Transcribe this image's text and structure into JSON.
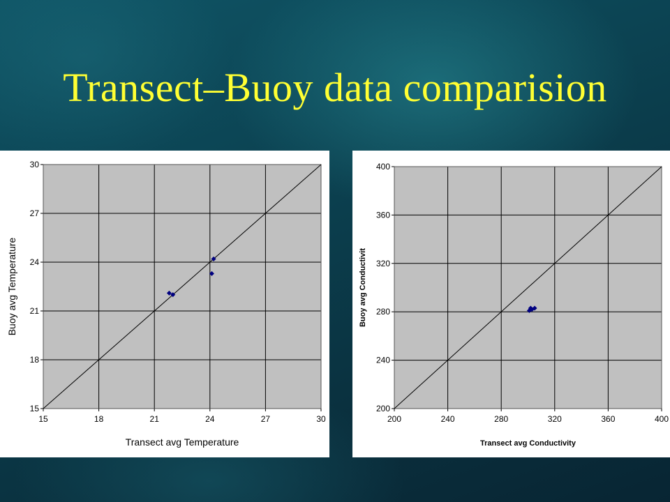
{
  "slide": {
    "title": "Transect–Buoy data comparision"
  },
  "chart_data": [
    {
      "type": "scatter",
      "xlabel": "Transect avg Temperature",
      "ylabel": "Buoy avg Temperature",
      "xlim": [
        15,
        30
      ],
      "ylim": [
        15,
        30
      ],
      "x_ticks": [
        15,
        18,
        21,
        24,
        27,
        30
      ],
      "y_ticks": [
        15,
        18,
        21,
        24,
        27,
        30
      ],
      "grid": true,
      "background": "#c0c0c0",
      "point_color": "#000080",
      "reference_line": "y = x",
      "points": [
        {
          "x": 21.8,
          "y": 22.1
        },
        {
          "x": 22.0,
          "y": 22.0
        },
        {
          "x": 24.2,
          "y": 24.2
        },
        {
          "x": 24.1,
          "y": 23.3
        }
      ]
    },
    {
      "type": "scatter",
      "xlabel": "Transect avg Conductivity",
      "ylabel": "Buoy avg Conductivit",
      "xlim": [
        200,
        400
      ],
      "ylim": [
        200,
        400
      ],
      "x_ticks": [
        200,
        240,
        280,
        320,
        360,
        400
      ],
      "y_ticks": [
        200,
        240,
        280,
        320,
        360,
        400
      ],
      "grid": true,
      "background": "#c0c0c0",
      "point_color": "#000080",
      "reference_line": "y = x",
      "points": [
        {
          "x": 301,
          "y": 281
        },
        {
          "x": 302,
          "y": 283
        },
        {
          "x": 305,
          "y": 283
        },
        {
          "x": 303,
          "y": 282
        }
      ]
    }
  ]
}
